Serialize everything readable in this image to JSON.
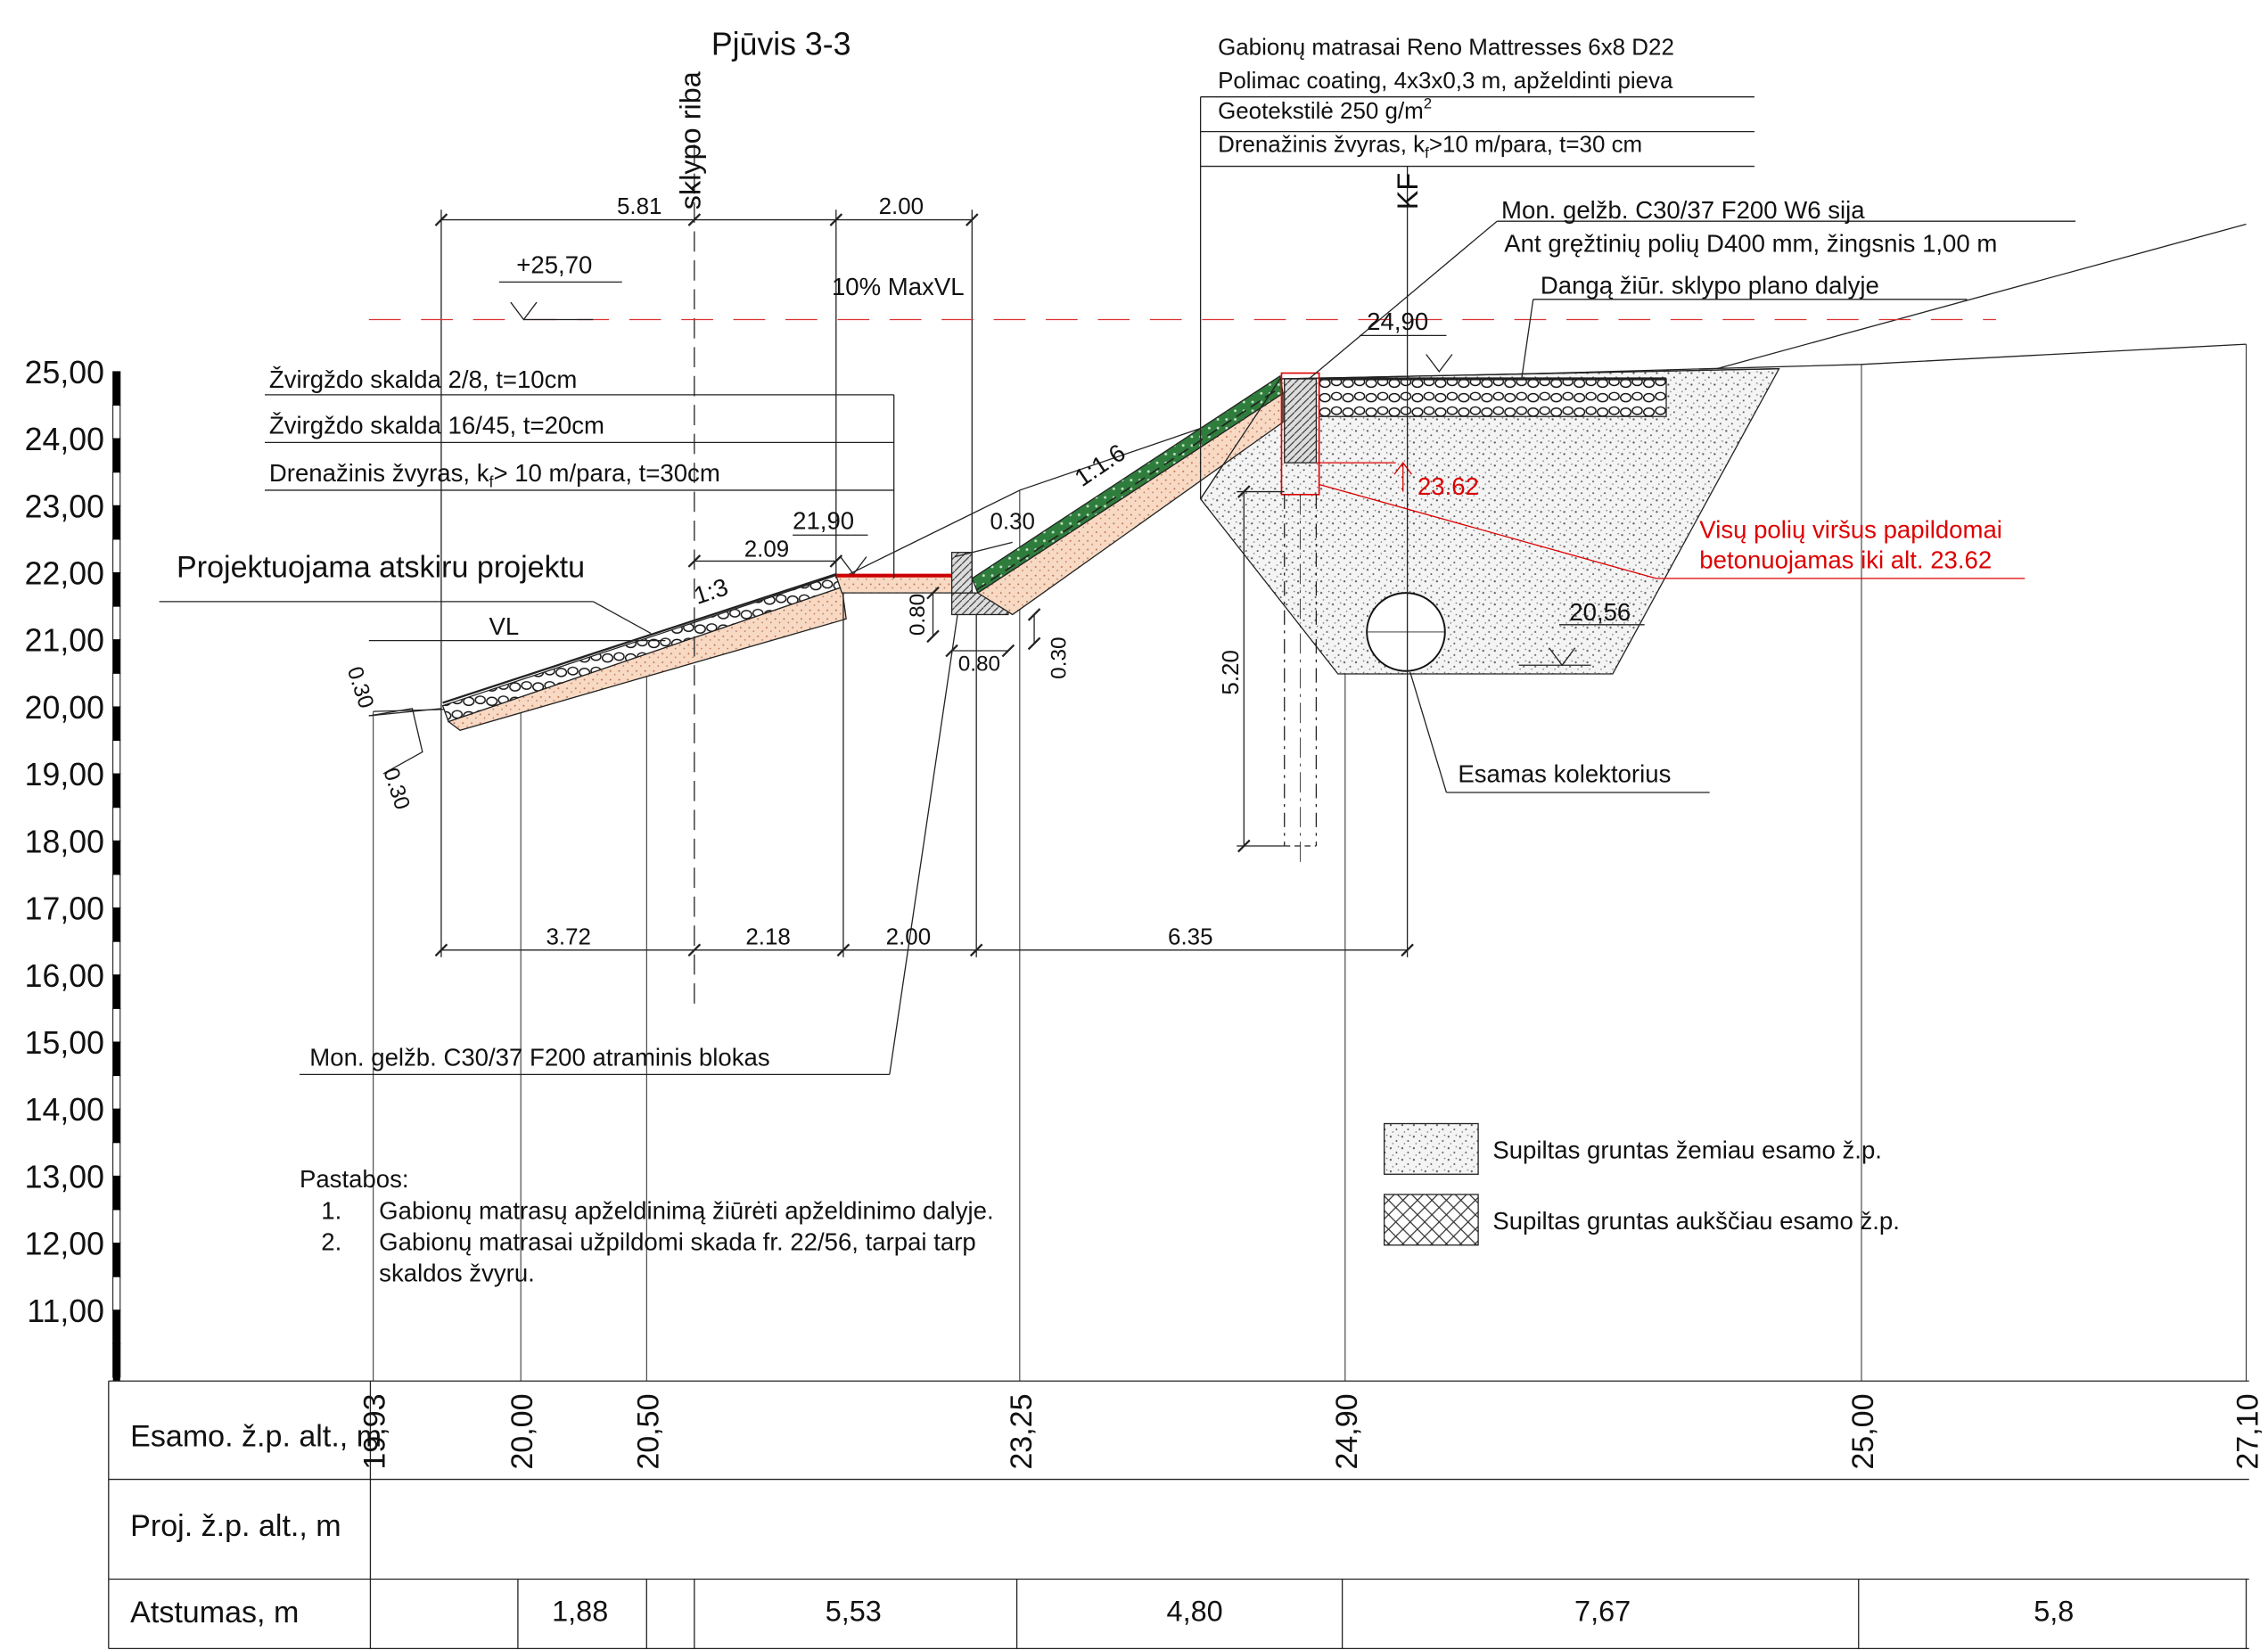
{
  "title": "Pjūvis 3-3",
  "markers": {
    "boundary": "sklypo riba",
    "kf": "KF"
  },
  "dimensions": {
    "top": [
      "5.81",
      "2.00"
    ],
    "bottom": [
      "3.72",
      "2.18",
      "2.00",
      "6.35"
    ],
    "platform": "2.09",
    "step": "0.30",
    "block_height": "0.80",
    "block_width": "0.80",
    "block_depth": "0.30",
    "pile_depth": "5.20",
    "gabion_thickness": [
      "0.30",
      "0.30"
    ]
  },
  "levels": {
    "max_water_label": "+25,70",
    "max_water_note": "10% MaxVL",
    "top": "24,90",
    "platform": "21,90",
    "collector": "20,56",
    "pile_top": "23.62"
  },
  "slopes": [
    "1:3",
    "1:1.6"
  ],
  "water_level": "VL",
  "layers_left": [
    "Žvirgždo skalda 2/8, t=10cm",
    "Žvirgždo skalda 16/45, t=20cm",
    {
      "pre": "Drenažinis žvyras, k",
      "sub": "f",
      "post": "> 10 m/para, t=30cm"
    }
  ],
  "project_note": "Projektuojama atskiru projektu",
  "layers_right": [
    "Gabionų matrasai Reno Mattresses 6x8 D22",
    "Polimac coating, 4x3x0,3 m, apželdinti pieva",
    {
      "pre": "Geotekstilė 250 g/m",
      "sup": "2"
    },
    {
      "pre": "Drenažinis žvyras, k",
      "sub": "f",
      "post": ">10 m/para, t=30 cm"
    }
  ],
  "beam": [
    "Mon. gelžb. C30/37 F200 W6 sija",
    "Ant gręžtinių polių D400 mm, žingsnis 1,00 m"
  ],
  "pavement": "Dangą žiūr. sklypo plano dalyje",
  "pile_note": [
    "Visų polių viršus papildomai",
    "betonuojamas iki alt. 23.62"
  ],
  "collector": "Esamas kolektorius",
  "block": "Mon. gelžb. C30/37 F200 atraminis blokas",
  "notes": {
    "heading": "Pastabos:",
    "items": [
      {
        "number": "1.",
        "lines": [
          "Gabionų matrasų apželdinimą žiūrėti apželdinimo dalyje."
        ]
      },
      {
        "number": "2.",
        "lines": [
          "Gabionų matrasai užpildomi skada fr. 22/56, tarpai tarp",
          "skaldos žvyru."
        ]
      }
    ]
  },
  "legend": [
    "Supiltas gruntas žemiau esamo ž.p.",
    "Supiltas gruntas aukščiau esamo ž.p."
  ],
  "elevation_scale": [
    "25,00",
    "24,00",
    "23,00",
    "22,00",
    "21,00",
    "20,00",
    "19,00",
    "18,00",
    "17,00",
    "16,00",
    "15,00",
    "14,00",
    "13,00",
    "12,00",
    "11,00"
  ],
  "table": {
    "row_labels": [
      "Esamo. ž.p. alt., m",
      "Proj. ž.p. alt., m",
      "Atstumas, m"
    ],
    "existing": [
      "19,93",
      "20,00",
      "20,50",
      "23,25",
      "24,90",
      "25,00",
      "27,10"
    ],
    "distances": [
      "1,88",
      "5,53",
      "4,80",
      "7,67",
      "5,8"
    ]
  }
}
